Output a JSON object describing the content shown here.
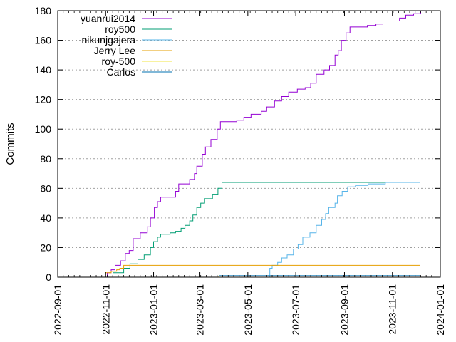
{
  "chart_data": {
    "type": "line",
    "ylabel": "Commits",
    "xlabel": "",
    "ylim": [
      0,
      180
    ],
    "xlim": [
      "2022-09-01",
      "2024-01-01"
    ],
    "y_ticks": [
      0,
      20,
      40,
      60,
      80,
      100,
      120,
      140,
      160,
      180
    ],
    "x_ticks": [
      "2022-09-01",
      "2022-11-01",
      "2023-01-01",
      "2023-03-01",
      "2023-05-01",
      "2023-07-01",
      "2023-09-01",
      "2023-11-01",
      "2024-01-01"
    ],
    "grid": "horizontal dashed",
    "legend_position": "top-left",
    "series": [
      {
        "name": "yuanrui2014",
        "color": "#9400d3",
        "points": [
          [
            "2022-10-31",
            0
          ],
          [
            "2022-11-03",
            3
          ],
          [
            "2022-11-08",
            5
          ],
          [
            "2022-11-13",
            8
          ],
          [
            "2022-11-20",
            11
          ],
          [
            "2022-11-26",
            16
          ],
          [
            "2022-12-01",
            18
          ],
          [
            "2022-12-06",
            26
          ],
          [
            "2022-12-15",
            30
          ],
          [
            "2022-12-24",
            34
          ],
          [
            "2022-12-28",
            40
          ],
          [
            "2023-01-02",
            47
          ],
          [
            "2023-01-06",
            51
          ],
          [
            "2023-01-10",
            54
          ],
          [
            "2023-01-22",
            54
          ],
          [
            "2023-01-29",
            58
          ],
          [
            "2023-02-02",
            63
          ],
          [
            "2023-02-09",
            63
          ],
          [
            "2023-02-16",
            66
          ],
          [
            "2023-02-22",
            70
          ],
          [
            "2023-02-25",
            75
          ],
          [
            "2023-03-04",
            83
          ],
          [
            "2023-03-08",
            88
          ],
          [
            "2023-03-15",
            93
          ],
          [
            "2023-03-23",
            100
          ],
          [
            "2023-03-27",
            105
          ],
          [
            "2023-04-10",
            105
          ],
          [
            "2023-04-17",
            106
          ],
          [
            "2023-04-26",
            108
          ],
          [
            "2023-05-05",
            110
          ],
          [
            "2023-05-18",
            112
          ],
          [
            "2023-05-25",
            115
          ],
          [
            "2023-06-04",
            119
          ],
          [
            "2023-06-13",
            122
          ],
          [
            "2023-06-22",
            125
          ],
          [
            "2023-07-03",
            127
          ],
          [
            "2023-07-13",
            128
          ],
          [
            "2023-07-20",
            131
          ],
          [
            "2023-07-27",
            137
          ],
          [
            "2023-08-06",
            140
          ],
          [
            "2023-08-13",
            143
          ],
          [
            "2023-08-20",
            150
          ],
          [
            "2023-08-24",
            153
          ],
          [
            "2023-08-28",
            160
          ],
          [
            "2023-09-03",
            165
          ],
          [
            "2023-09-08",
            169
          ],
          [
            "2023-09-15",
            169
          ],
          [
            "2023-09-30",
            170
          ],
          [
            "2023-10-11",
            171
          ],
          [
            "2023-10-20",
            173
          ],
          [
            "2023-11-05",
            173
          ],
          [
            "2023-11-10",
            175
          ],
          [
            "2023-11-18",
            177
          ],
          [
            "2023-11-28",
            178
          ],
          [
            "2023-12-07",
            180
          ]
        ]
      },
      {
        "name": "roy500",
        "color": "#009e73",
        "points": [
          [
            "2022-11-10",
            3
          ],
          [
            "2022-11-24",
            6
          ],
          [
            "2022-12-02",
            9
          ],
          [
            "2022-12-12",
            12
          ],
          [
            "2022-12-20",
            15
          ],
          [
            "2022-12-28",
            20
          ],
          [
            "2023-01-01",
            24
          ],
          [
            "2023-01-06",
            27
          ],
          [
            "2023-01-10",
            29
          ],
          [
            "2023-01-22",
            30
          ],
          [
            "2023-01-29",
            31
          ],
          [
            "2023-02-05",
            33
          ],
          [
            "2023-02-10",
            35
          ],
          [
            "2023-02-16",
            38
          ],
          [
            "2023-02-20",
            42
          ],
          [
            "2023-02-25",
            47
          ],
          [
            "2023-03-02",
            50
          ],
          [
            "2023-03-07",
            53
          ],
          [
            "2023-03-17",
            56
          ],
          [
            "2023-03-24",
            60
          ],
          [
            "2023-03-29",
            64
          ],
          [
            "2023-12-06",
            64
          ]
        ]
      },
      {
        "name": "nikunjgajera",
        "color": "#56b4e9",
        "points": [
          [
            "2023-05-27",
            0
          ],
          [
            "2023-05-29",
            6
          ],
          [
            "2023-06-01",
            8
          ],
          [
            "2023-06-08",
            10
          ],
          [
            "2023-06-13",
            13
          ],
          [
            "2023-06-20",
            15
          ],
          [
            "2023-06-28",
            19
          ],
          [
            "2023-07-04",
            22
          ],
          [
            "2023-07-10",
            27
          ],
          [
            "2023-07-19",
            30
          ],
          [
            "2023-07-27",
            35
          ],
          [
            "2023-08-03",
            39
          ],
          [
            "2023-08-08",
            43
          ],
          [
            "2023-08-12",
            47
          ],
          [
            "2023-08-20",
            50
          ],
          [
            "2023-08-23",
            55
          ],
          [
            "2023-08-29",
            58
          ],
          [
            "2023-09-05",
            61
          ],
          [
            "2023-09-15",
            62
          ],
          [
            "2023-10-01",
            63
          ],
          [
            "2023-10-23",
            64
          ],
          [
            "2023-12-06",
            64
          ]
        ]
      },
      {
        "name": "Jerry Lee",
        "color": "#e69f00",
        "points": [
          [
            "2022-11-01",
            3
          ],
          [
            "2022-11-08",
            4
          ],
          [
            "2022-11-15",
            5
          ],
          [
            "2022-11-19",
            6
          ],
          [
            "2022-11-24",
            8
          ],
          [
            "2023-12-06",
            8
          ]
        ]
      },
      {
        "name": "roy-500",
        "color": "#f0e442",
        "points": [
          [
            "2023-02-12",
            0
          ],
          [
            "2023-03-25",
            1
          ]
        ]
      },
      {
        "name": "Carlos",
        "color": "#0072b2",
        "points": [
          [
            "2023-03-25",
            1
          ],
          [
            "2023-12-06",
            1
          ]
        ]
      }
    ]
  }
}
